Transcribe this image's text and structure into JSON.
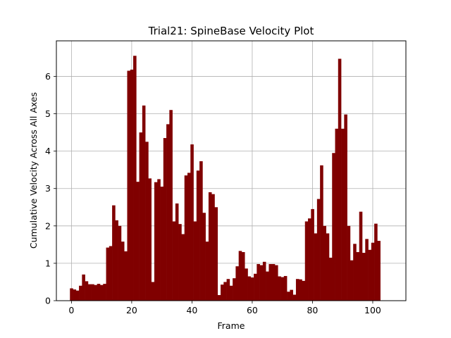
{
  "chart_data": {
    "type": "bar",
    "title": "Trial21: SpineBase Velocity Plot",
    "xlabel": "Frame",
    "ylabel": "Cumulative Velocity Across All Axes",
    "xlim": [
      -5,
      111
    ],
    "ylim": [
      0,
      6.95
    ],
    "xticks": [
      0,
      20,
      40,
      60,
      80,
      100
    ],
    "yticks": [
      0,
      1,
      2,
      3,
      4,
      5,
      6
    ],
    "grid": true,
    "bar_color": "#800000",
    "x_start": 0,
    "x_step": 1,
    "values": [
      0.33,
      0.3,
      0.27,
      0.4,
      0.7,
      0.52,
      0.44,
      0.44,
      0.42,
      0.45,
      0.42,
      0.45,
      1.42,
      1.46,
      2.55,
      2.15,
      2.0,
      1.58,
      1.32,
      6.15,
      6.18,
      6.55,
      3.18,
      4.5,
      5.22,
      4.25,
      3.27,
      0.5,
      3.17,
      3.25,
      3.05,
      4.35,
      4.72,
      5.1,
      2.12,
      2.6,
      2.05,
      1.78,
      3.35,
      3.42,
      4.18,
      2.12,
      3.48,
      3.73,
      2.35,
      1.58,
      2.9,
      2.85,
      2.5,
      0.15,
      0.43,
      0.5,
      0.58,
      0.4,
      0.6,
      0.92,
      1.33,
      1.3,
      0.86,
      0.65,
      0.62,
      0.72,
      0.98,
      0.95,
      1.04,
      0.78,
      0.98,
      0.98,
      0.95,
      0.65,
      0.63,
      0.66,
      0.24,
      0.29,
      0.16,
      0.58,
      0.57,
      0.53,
      2.12,
      2.2,
      2.45,
      1.8,
      2.72,
      3.62,
      2.0,
      1.8,
      1.15,
      3.95,
      4.6,
      6.47,
      4.6,
      4.98,
      2.0,
      1.08,
      1.52,
      1.3,
      2.38,
      1.28,
      1.65,
      1.36,
      1.55,
      2.06,
      1.6
    ]
  }
}
